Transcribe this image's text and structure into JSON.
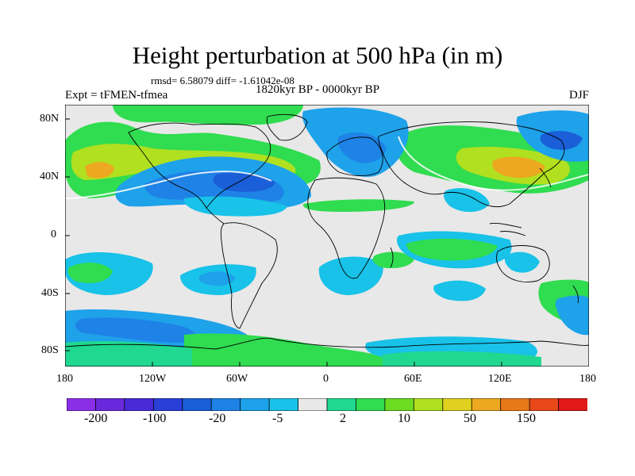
{
  "header": {
    "title": "Height perturbation at 500 hPa (in m)",
    "stats": "rmsd= 6.58079 diff= -1.61042e-08",
    "subtitle": "1820kyr BP - 0000kyr BP",
    "experiment": "Expt = tFMEN-tfmea",
    "season": "DJF"
  },
  "axes": {
    "lat_labels": [
      "80N",
      "40N",
      "0",
      "40S",
      "80S"
    ],
    "lon_labels": [
      "180",
      "120W",
      "60W",
      "0",
      "60E",
      "120E",
      "180"
    ]
  },
  "colorbar": {
    "colors": [
      "#8b2ee8",
      "#6a28dc",
      "#4a2ad8",
      "#2a3ed8",
      "#1a5ed8",
      "#1e82e6",
      "#1ea2ea",
      "#18c2e8",
      "#e8e8e8",
      "#20d890",
      "#30dc50",
      "#6cdc20",
      "#b0e020",
      "#e0d020",
      "#eca820",
      "#e87818",
      "#e84818",
      "#e01818"
    ],
    "labels": [
      "-200",
      "-100",
      "-20",
      "-5",
      "2",
      "10",
      "50",
      "150"
    ]
  },
  "legend_colors": {
    "neutral": "#e8e8e8",
    "light_blue": "#18c2e8",
    "mid_blue": "#1ea2ea",
    "blue": "#1e82e6",
    "dark_blue": "#1a5ed8",
    "teal_green": "#20d890",
    "green": "#30dc50",
    "yellow_green": "#b0e020",
    "orange": "#eca820"
  }
}
